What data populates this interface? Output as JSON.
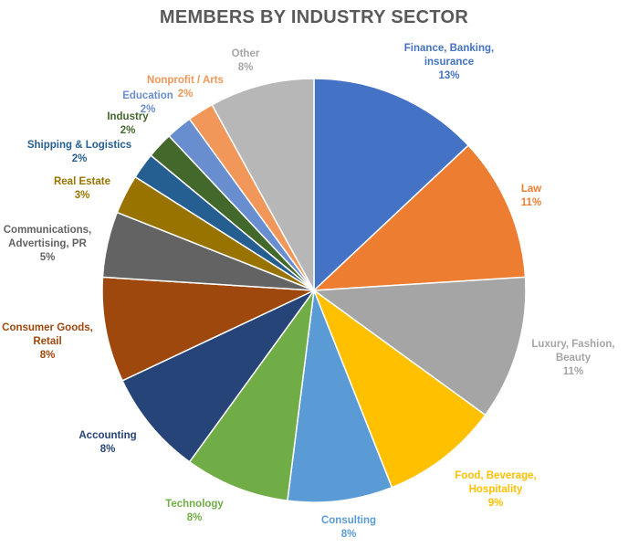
{
  "chart_data": {
    "type": "pie",
    "title": "MEMBERS BY INDUSTRY SECTOR",
    "start_angle_deg": 0,
    "direction": "clockwise",
    "slices": [
      {
        "label_lines": [
          "Finance, Banking,",
          "insurance"
        ],
        "value": 13,
        "pct_text": "13%",
        "color": "#4472C4"
      },
      {
        "label_lines": [
          "Law"
        ],
        "value": 11,
        "pct_text": "11%",
        "color": "#ED7D31"
      },
      {
        "label_lines": [
          "Luxury, Fashion,",
          "Beauty"
        ],
        "value": 11,
        "pct_text": "11%",
        "color": "#A5A5A5"
      },
      {
        "label_lines": [
          "Food, Beverage,",
          "Hospitality"
        ],
        "value": 9,
        "pct_text": "9%",
        "color": "#FFC000"
      },
      {
        "label_lines": [
          "Consulting"
        ],
        "value": 8,
        "pct_text": "8%",
        "color": "#5B9BD5"
      },
      {
        "label_lines": [
          "Technology"
        ],
        "value": 8,
        "pct_text": "8%",
        "color": "#70AD47"
      },
      {
        "label_lines": [
          "Accounting"
        ],
        "value": 8,
        "pct_text": "8%",
        "color": "#264478"
      },
      {
        "label_lines": [
          "Consumer Goods,",
          "Retail"
        ],
        "value": 8,
        "pct_text": "8%",
        "color": "#9E480E"
      },
      {
        "label_lines": [
          "Communications,",
          "Advertising, PR"
        ],
        "value": 5,
        "pct_text": "5%",
        "color": "#636363"
      },
      {
        "label_lines": [
          "Real Estate"
        ],
        "value": 3,
        "pct_text": "3%",
        "color": "#997300"
      },
      {
        "label_lines": [
          "Shipping & Logistics"
        ],
        "value": 2,
        "pct_text": "2%",
        "color": "#255E91"
      },
      {
        "label_lines": [
          "Industry"
        ],
        "value": 2,
        "pct_text": "2%",
        "color": "#43682B"
      },
      {
        "label_lines": [
          "Education"
        ],
        "value": 2,
        "pct_text": "2%",
        "color": "#698ED0"
      },
      {
        "label_lines": [
          "Nonprofit / Arts"
        ],
        "value": 2,
        "pct_text": "2%",
        "color": "#F1975A"
      },
      {
        "label_lines": [
          "Other"
        ],
        "value": 8,
        "pct_text": "8%",
        "color": "#B7B7B7"
      }
    ]
  }
}
